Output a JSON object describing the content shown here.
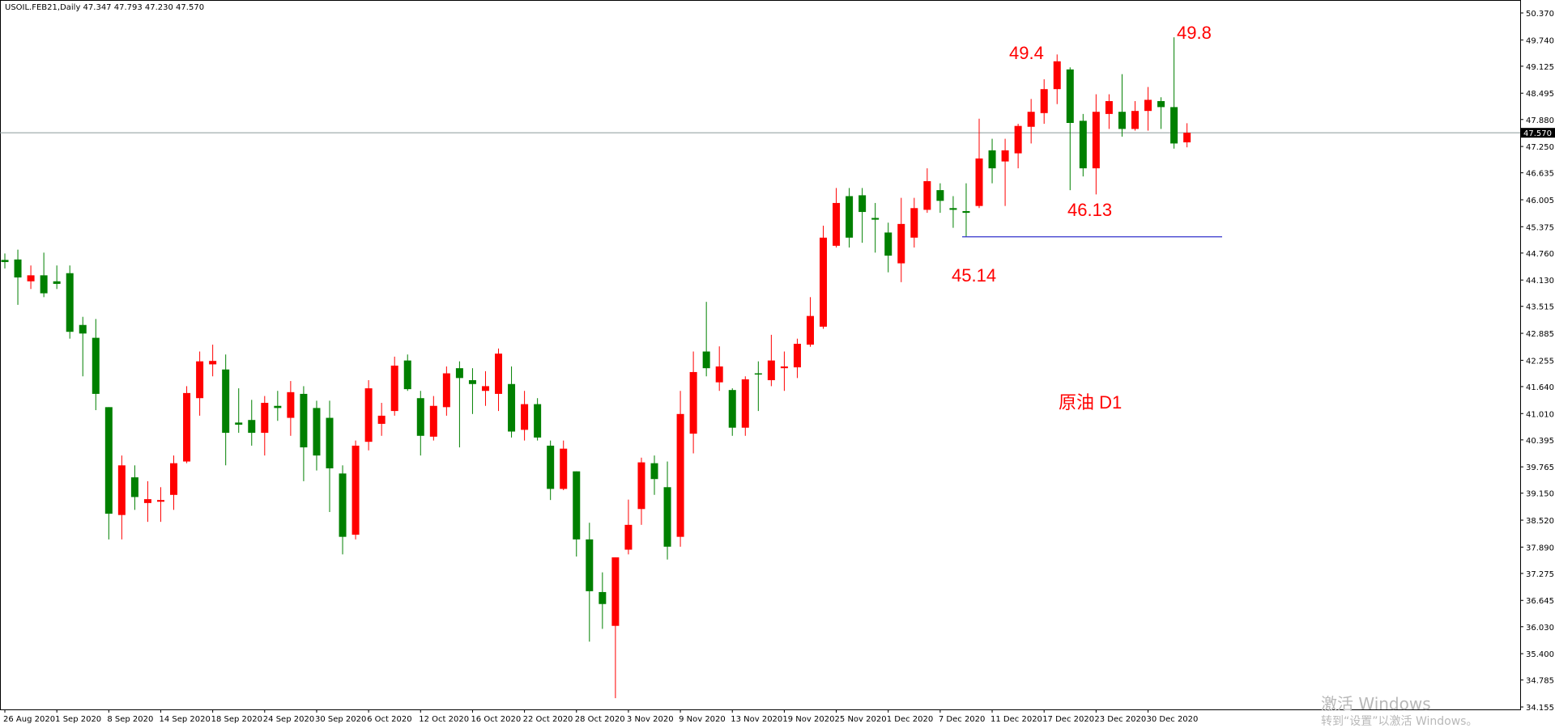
{
  "chart_data": {
    "type": "candlestick",
    "header": "USOIL.FEB21,Daily  47.347 47.793 47.230 47.570",
    "up_color": "#ff0000",
    "down_color": "#008000",
    "categories": [
      "26 Aug 2020",
      null,
      null,
      null,
      "1 Sep 2020",
      null,
      null,
      null,
      "8 Sep 2020",
      null,
      null,
      null,
      "14 Sep 2020",
      null,
      null,
      null,
      "18 Sep 2020",
      null,
      null,
      null,
      "24 Sep 2020",
      null,
      null,
      null,
      "30 Sep 2020",
      null,
      null,
      null,
      "6 Oct 2020",
      null,
      null,
      null,
      "12 Oct 2020",
      null,
      null,
      null,
      "16 Oct 2020",
      null,
      null,
      null,
      "22 Oct 2020",
      null,
      null,
      null,
      "28 Oct 2020",
      null,
      null,
      null,
      "3 Nov 2020",
      null,
      null,
      null,
      "9 Nov 2020",
      null,
      null,
      null,
      "13 Nov 2020",
      null,
      null,
      null,
      "19 Nov 2020",
      null,
      null,
      null,
      "25 Nov 2020",
      null,
      null,
      null,
      "1 Dec 2020",
      null,
      null,
      null,
      "7 Dec 2020",
      null,
      null,
      null,
      "11 Dec 2020",
      null,
      null,
      null,
      "17 Dec 2020",
      null,
      null,
      null,
      "23 Dec 2020",
      null,
      null,
      null,
      "30 Dec 2020",
      null,
      null,
      null
    ],
    "open": [
      44.6,
      44.61,
      44.1,
      44.24,
      44.1,
      44.29,
      43.08,
      42.78,
      41.16,
      38.64,
      39.52,
      38.92,
      38.95,
      39.11,
      39.89,
      41.37,
      42.16,
      42.04,
      40.8,
      40.86,
      40.56,
      41.19,
      40.91,
      41.47,
      41.14,
      40.91,
      39.61,
      38.18,
      40.35,
      40.77,
      41.07,
      42.25,
      41.37,
      40.47,
      41.16,
      42.07,
      41.79,
      41.54,
      41.47,
      41.7,
      40.63,
      41.23,
      40.26,
      39.25,
      39.66,
      38.07,
      36.84,
      36.05,
      37.83,
      38.78,
      39.85,
      39.29,
      38.13,
      40.54,
      42.46,
      41.74,
      41.56,
      40.68,
      41.95,
      41.79,
      42.07,
      42.09,
      42.62,
      43.04,
      44.93,
      46.09,
      46.11,
      45.58,
      45.24,
      44.52,
      45.12,
      45.77,
      46.23,
      45.81,
      45.74,
      45.86,
      47.16,
      46.9,
      47.09,
      47.71,
      48.03,
      48.59,
      49.05,
      47.85,
      46.74,
      48.01,
      48.06,
      47.66,
      48.08,
      48.31,
      48.17,
      47.347
    ],
    "high": [
      44.75,
      44.84,
      44.47,
      44.77,
      44.47,
      44.47,
      43.27,
      43.22,
      41.16,
      40.03,
      39.8,
      39.43,
      39.29,
      40.03,
      41.65,
      42.46,
      42.62,
      42.39,
      41.6,
      41.33,
      41.42,
      41.54,
      41.77,
      41.65,
      41.31,
      41.31,
      39.8,
      40.38,
      41.79,
      41.26,
      42.34,
      42.39,
      41.54,
      41.42,
      42.11,
      42.23,
      42.07,
      42.0,
      42.53,
      42.11,
      41.54,
      41.37,
      40.38,
      40.38,
      39.66,
      38.46,
      37.3,
      37.65,
      39.0,
      39.98,
      40.03,
      39.89,
      41.54,
      42.46,
      43.62,
      42.58,
      41.6,
      41.88,
      42.23,
      42.85,
      42.46,
      42.76,
      43.73,
      45.4,
      46.28,
      46.28,
      46.28,
      45.93,
      45.47,
      46.05,
      46.05,
      46.74,
      46.39,
      46.09,
      46.39,
      47.9,
      47.43,
      47.43,
      47.78,
      48.36,
      48.82,
      49.4,
      49.1,
      48.01,
      48.47,
      48.47,
      48.94,
      48.31,
      48.64,
      48.4,
      49.8,
      47.793
    ],
    "low": [
      44.4,
      43.55,
      43.92,
      43.73,
      43.92,
      42.76,
      41.88,
      41.09,
      38.07,
      38.07,
      38.76,
      38.48,
      38.48,
      38.76,
      39.85,
      40.96,
      41.88,
      39.8,
      40.56,
      40.26,
      40.03,
      40.84,
      40.49,
      39.43,
      39.68,
      38.71,
      37.72,
      38.07,
      40.15,
      40.49,
      40.96,
      41.54,
      40.03,
      40.38,
      40.96,
      40.22,
      41.0,
      41.19,
      41.07,
      40.45,
      40.38,
      40.38,
      38.99,
      39.22,
      37.67,
      35.68,
      35.98,
      34.36,
      37.72,
      38.41,
      39.11,
      37.6,
      37.9,
      40.08,
      41.88,
      41.54,
      40.49,
      40.49,
      41.07,
      41.65,
      41.54,
      41.84,
      42.57,
      42.99,
      44.89,
      44.89,
      45.0,
      44.77,
      44.31,
      44.08,
      44.89,
      45.7,
      45.7,
      45.35,
      45.14,
      45.81,
      46.39,
      45.86,
      46.74,
      47.32,
      47.78,
      48.24,
      46.23,
      46.55,
      46.13,
      47.66,
      47.48,
      47.62,
      47.62,
      47.66,
      47.2,
      47.23
    ],
    "close": [
      44.55,
      44.19,
      44.24,
      43.82,
      44.04,
      42.92,
      42.88,
      41.47,
      38.67,
      39.8,
      39.06,
      39.01,
      38.99,
      39.85,
      41.49,
      42.23,
      42.24,
      40.56,
      40.75,
      40.56,
      41.26,
      41.14,
      41.51,
      40.22,
      40.03,
      39.73,
      38.13,
      40.26,
      41.6,
      40.96,
      42.13,
      41.58,
      40.49,
      41.19,
      41.95,
      41.84,
      41.7,
      41.65,
      42.41,
      40.59,
      41.23,
      40.45,
      39.25,
      40.19,
      38.07,
      36.86,
      36.56,
      37.65,
      38.41,
      39.87,
      39.48,
      37.9,
      41.0,
      41.98,
      42.07,
      42.11,
      40.68,
      41.81,
      41.93,
      42.25,
      42.11,
      42.64,
      43.29,
      45.12,
      45.93,
      45.12,
      45.72,
      45.54,
      44.7,
      45.44,
      45.81,
      46.44,
      45.98,
      45.77,
      45.7,
      46.97,
      46.74,
      47.16,
      47.73,
      48.06,
      48.59,
      49.24,
      47.8,
      46.74,
      48.06,
      48.31,
      47.66,
      48.08,
      48.34,
      48.17,
      47.32,
      47.57
    ],
    "current_price": {
      "value": 47.57,
      "label": "47.570"
    },
    "ylim": [
      34.155,
      50.37
    ],
    "yticks": [
      {
        "value": 50.37,
        "label": "50.370"
      },
      {
        "value": 49.74,
        "label": "49.740"
      },
      49.125,
      48.495,
      {
        "value": 47.88,
        "label": "47.880"
      },
      {
        "value": 47.25,
        "label": "47.250"
      },
      46.635,
      46.005,
      45.375,
      {
        "value": 44.76,
        "label": "44.760"
      },
      {
        "value": 44.13,
        "label": "44.130"
      },
      43.515,
      42.885,
      42.255,
      {
        "value": 41.64,
        "label": "41.640"
      },
      {
        "value": 41.01,
        "label": "41.010"
      },
      40.395,
      39.765,
      {
        "value": 39.15,
        "label": "39.150"
      },
      {
        "value": 38.52,
        "label": "38.520"
      },
      {
        "value": 37.89,
        "label": "37.890"
      },
      37.275,
      36.645,
      {
        "value": 36.03,
        "label": "36.030"
      },
      {
        "value": 35.4,
        "label": "35.400"
      },
      34.785,
      34.155
    ],
    "price_labels": [
      49.4,
      49.8,
      46.13,
      45.14
    ],
    "annotation": "原油 D1",
    "annotation_color": "#ff0000",
    "support_color": "#3333cc",
    "watermark": [
      "激活 Windows",
      "转到“设置”以激活 Windows。"
    ]
  }
}
